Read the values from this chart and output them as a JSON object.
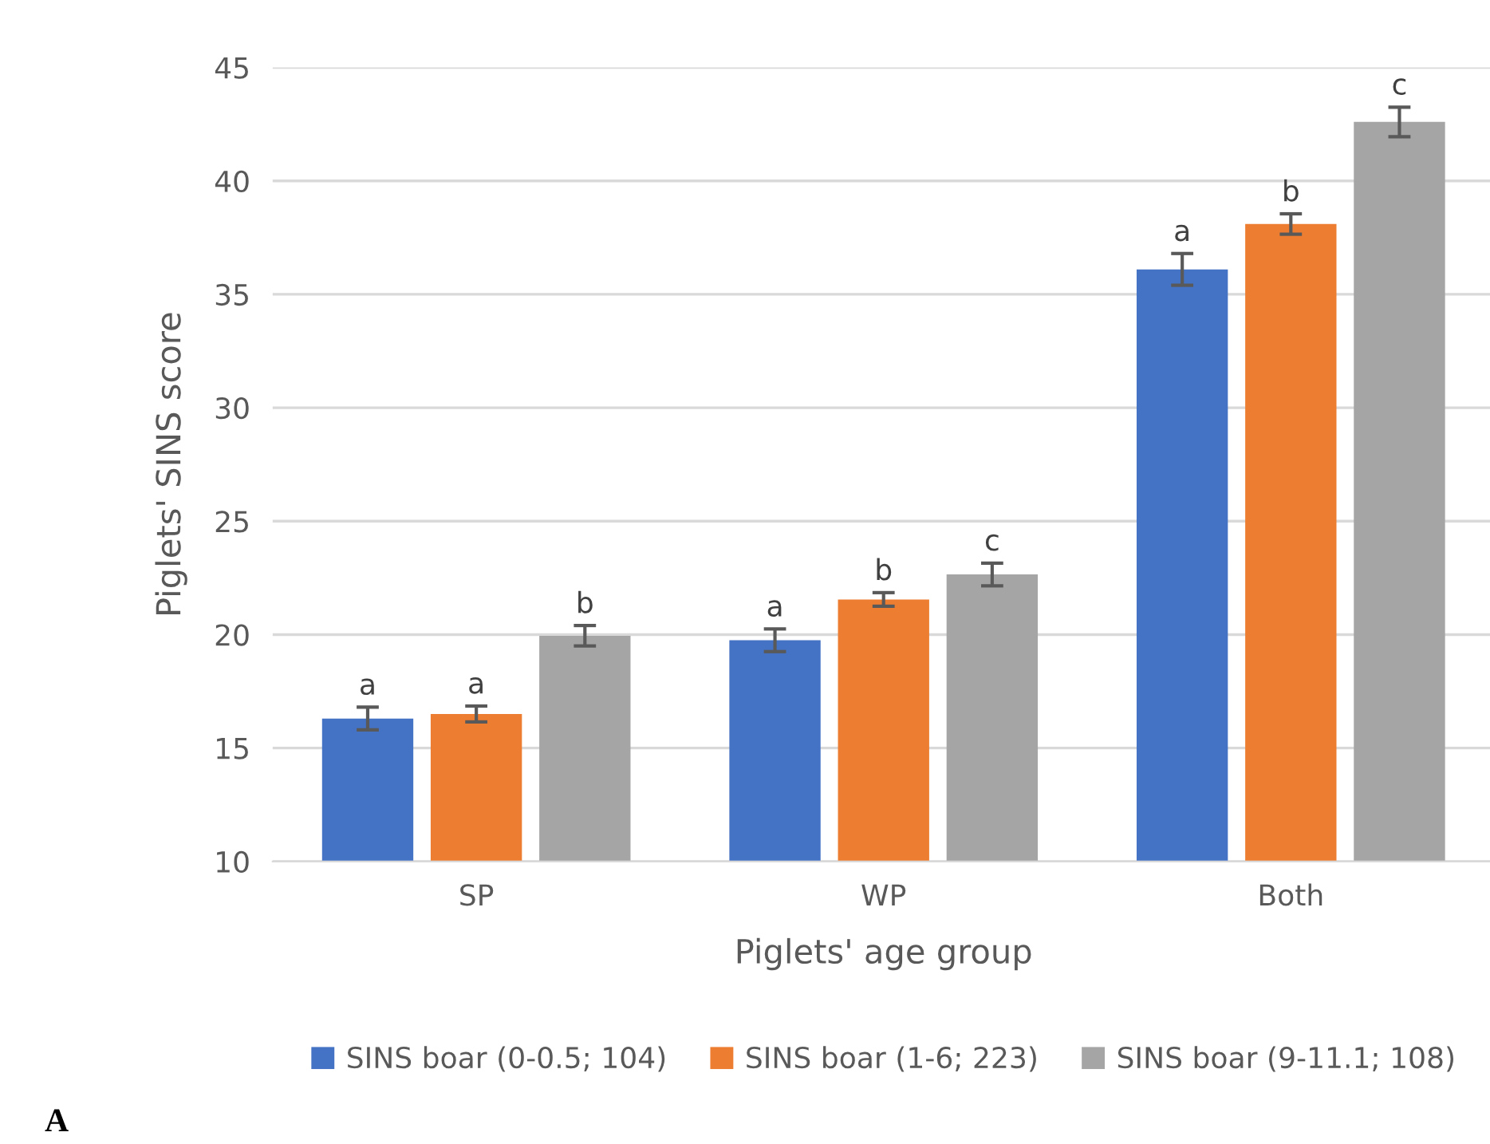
{
  "chart_data": {
    "type": "bar",
    "xlabel": "Piglets' age group",
    "ylabel": "Piglets' SINS score",
    "categories": [
      "SP",
      "WP",
      "Both"
    ],
    "series": [
      {
        "name": "SINS boar (0-0.5; 104)",
        "color": "#4472c4",
        "values": [
          16.3,
          19.75,
          36.1
        ],
        "errors": [
          0.5,
          0.5,
          0.7
        ],
        "value_labels": [
          "a",
          "a",
          "a"
        ]
      },
      {
        "name": "SINS boar (1-6; 223)",
        "color": "#ed7d31",
        "values": [
          16.5,
          21.55,
          38.1
        ],
        "errors": [
          0.35,
          0.3,
          0.45
        ],
        "value_labels": [
          "a",
          "b",
          "b"
        ]
      },
      {
        "name": "SINS boar (9-11.1; 108)",
        "color": "#a5a5a5",
        "values": [
          19.95,
          22.65,
          42.6
        ],
        "errors": [
          0.45,
          0.5,
          0.65
        ],
        "value_labels": [
          "b",
          "c",
          "c"
        ]
      }
    ],
    "ylim": [
      10,
      45
    ],
    "yticks": [
      10,
      15,
      20,
      25,
      30,
      35,
      40,
      45
    ],
    "grid": "y",
    "legend": "bottom",
    "annotations": [
      "A"
    ]
  }
}
